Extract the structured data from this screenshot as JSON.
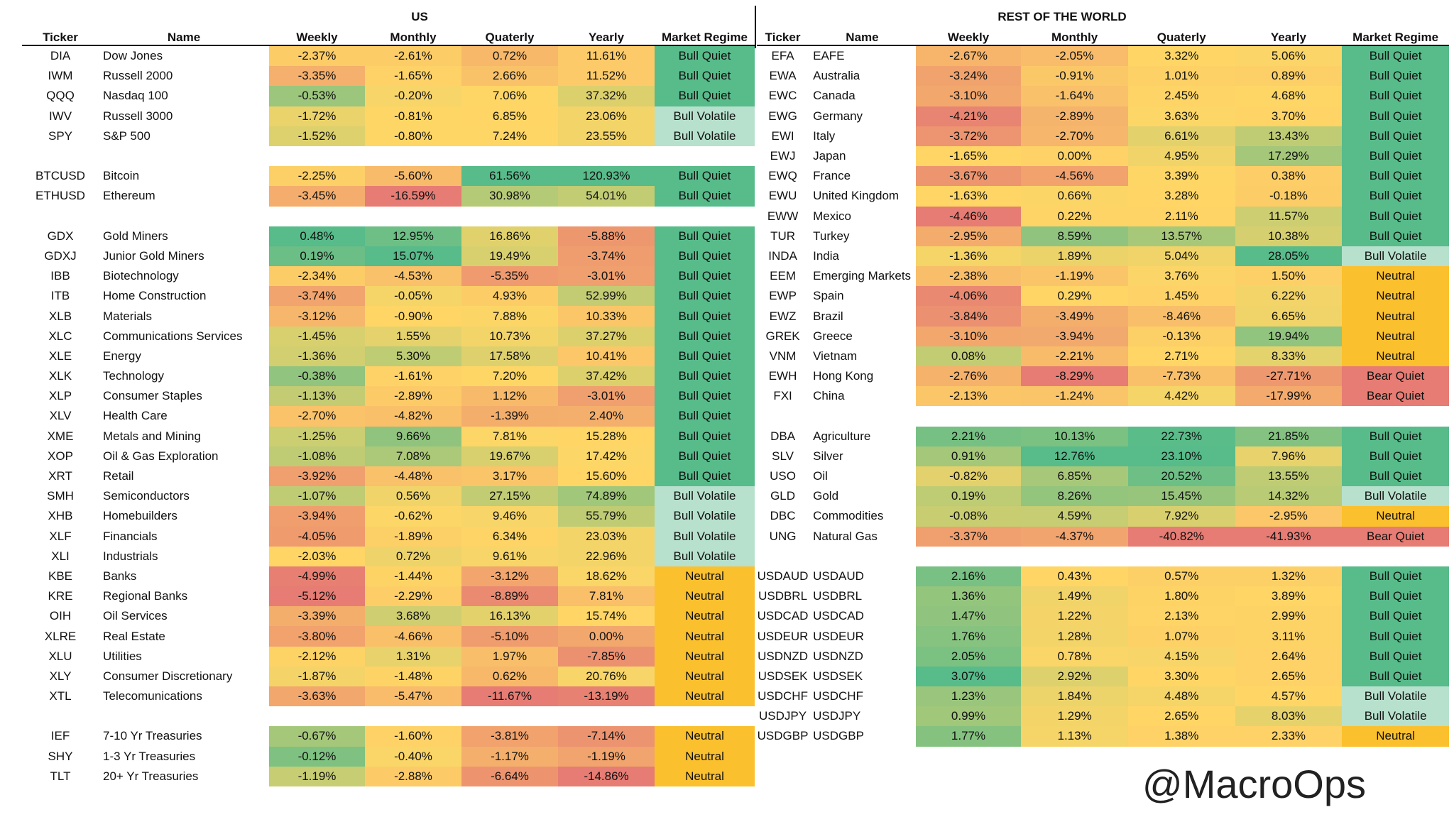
{
  "colors": {
    "bull_quiet": "#57bb8a",
    "bull_volatile": "#b7e1cd",
    "neutral": "#fbc02d",
    "bear_quiet": "#e67c73",
    "scale_low": "#e67c73",
    "scale_mid": "#ffd666",
    "scale_high": "#57bb8a"
  },
  "headers": {
    "ticker": "Ticker",
    "name": "Name",
    "weekly": "Weekly",
    "monthly": "Monthly",
    "quarterly": "Quaterly",
    "yearly": "Yearly",
    "regime": "Market Regime"
  },
  "us": {
    "title": "US",
    "rows": [
      {
        "ticker": "DIA",
        "name": "Dow Jones",
        "weekly": "-2.37%",
        "monthly": "-2.61%",
        "quarterly": "0.72%",
        "yearly": "11.61%",
        "regime": "Bull Quiet"
      },
      {
        "ticker": "IWM",
        "name": "Russell 2000",
        "weekly": "-3.35%",
        "monthly": "-1.65%",
        "quarterly": "2.66%",
        "yearly": "11.52%",
        "regime": "Bull Quiet"
      },
      {
        "ticker": "QQQ",
        "name": "Nasdaq 100",
        "weekly": "-0.53%",
        "monthly": "-0.20%",
        "quarterly": "7.06%",
        "yearly": "37.32%",
        "regime": "Bull Quiet"
      },
      {
        "ticker": "IWV",
        "name": "Russell 3000",
        "weekly": "-1.72%",
        "monthly": "-0.81%",
        "quarterly": "6.85%",
        "yearly": "23.06%",
        "regime": "Bull Volatile"
      },
      {
        "ticker": "SPY",
        "name": "S&P 500",
        "weekly": "-1.52%",
        "monthly": "-0.80%",
        "quarterly": "7.24%",
        "yearly": "23.55%",
        "regime": "Bull Volatile"
      },
      {
        "gap": true
      },
      {
        "ticker": "BTCUSD",
        "name": "Bitcoin",
        "weekly": "-2.25%",
        "monthly": "-5.60%",
        "quarterly": "61.56%",
        "yearly": "120.93%",
        "regime": "Bull Quiet"
      },
      {
        "ticker": "ETHUSD",
        "name": "Ethereum",
        "weekly": "-3.45%",
        "monthly": "-16.59%",
        "quarterly": "30.98%",
        "yearly": "54.01%",
        "regime": "Bull Quiet"
      },
      {
        "gap": true
      },
      {
        "ticker": "GDX",
        "name": "Gold Miners",
        "weekly": "0.48%",
        "monthly": "12.95%",
        "quarterly": "16.86%",
        "yearly": "-5.88%",
        "regime": "Bull Quiet"
      },
      {
        "ticker": "GDXJ",
        "name": "Junior Gold Miners",
        "weekly": "0.19%",
        "monthly": "15.07%",
        "quarterly": "19.49%",
        "yearly": "-3.74%",
        "regime": "Bull Quiet"
      },
      {
        "ticker": "IBB",
        "name": "Biotechnology",
        "weekly": "-2.34%",
        "monthly": "-4.53%",
        "quarterly": "-5.35%",
        "yearly": "-3.01%",
        "regime": "Bull Quiet"
      },
      {
        "ticker": "ITB",
        "name": "Home Construction",
        "weekly": "-3.74%",
        "monthly": "-0.05%",
        "quarterly": "4.93%",
        "yearly": "52.99%",
        "regime": "Bull Quiet"
      },
      {
        "ticker": "XLB",
        "name": "Materials",
        "weekly": "-3.12%",
        "monthly": "-0.90%",
        "quarterly": "7.88%",
        "yearly": "10.33%",
        "regime": "Bull Quiet"
      },
      {
        "ticker": "XLC",
        "name": "Communications Services",
        "weekly": "-1.45%",
        "monthly": "1.55%",
        "quarterly": "10.73%",
        "yearly": "37.27%",
        "regime": "Bull Quiet"
      },
      {
        "ticker": "XLE",
        "name": "Energy",
        "weekly": "-1.36%",
        "monthly": "5.30%",
        "quarterly": "17.58%",
        "yearly": "10.41%",
        "regime": "Bull Quiet"
      },
      {
        "ticker": "XLK",
        "name": "Technology",
        "weekly": "-0.38%",
        "monthly": "-1.61%",
        "quarterly": "7.20%",
        "yearly": "37.42%",
        "regime": "Bull Quiet"
      },
      {
        "ticker": "XLP",
        "name": "Consumer Staples",
        "weekly": "-1.13%",
        "monthly": "-2.89%",
        "quarterly": "1.12%",
        "yearly": "-3.01%",
        "regime": "Bull Quiet"
      },
      {
        "ticker": "XLV",
        "name": "Health Care",
        "weekly": "-2.70%",
        "monthly": "-4.82%",
        "quarterly": "-1.39%",
        "yearly": "2.40%",
        "regime": "Bull Quiet"
      },
      {
        "ticker": "XME",
        "name": "Metals and Mining",
        "weekly": "-1.25%",
        "monthly": "9.66%",
        "quarterly": "7.81%",
        "yearly": "15.28%",
        "regime": "Bull Quiet"
      },
      {
        "ticker": "XOP",
        "name": "Oil & Gas Exploration",
        "weekly": "-1.08%",
        "monthly": "7.08%",
        "quarterly": "19.67%",
        "yearly": "17.42%",
        "regime": "Bull Quiet"
      },
      {
        "ticker": "XRT",
        "name": "Retail",
        "weekly": "-3.92%",
        "monthly": "-4.48%",
        "quarterly": "3.17%",
        "yearly": "15.60%",
        "regime": "Bull Quiet"
      },
      {
        "ticker": "SMH",
        "name": "Semiconductors",
        "weekly": "-1.07%",
        "monthly": "0.56%",
        "quarterly": "27.15%",
        "yearly": "74.89%",
        "regime": "Bull Volatile"
      },
      {
        "ticker": "XHB",
        "name": "Homebuilders",
        "weekly": "-3.94%",
        "monthly": "-0.62%",
        "quarterly": "9.46%",
        "yearly": "55.79%",
        "regime": "Bull Volatile"
      },
      {
        "ticker": "XLF",
        "name": "Financials",
        "weekly": "-4.05%",
        "monthly": "-1.89%",
        "quarterly": "6.34%",
        "yearly": "23.03%",
        "regime": "Bull Volatile"
      },
      {
        "ticker": "XLI",
        "name": "Industrials",
        "weekly": "-2.03%",
        "monthly": "0.72%",
        "quarterly": "9.61%",
        "yearly": "22.96%",
        "regime": "Bull Volatile"
      },
      {
        "ticker": "KBE",
        "name": "Banks",
        "weekly": "-4.99%",
        "monthly": "-1.44%",
        "quarterly": "-3.12%",
        "yearly": "18.62%",
        "regime": "Neutral"
      },
      {
        "ticker": "KRE",
        "name": "Regional Banks",
        "weekly": "-5.12%",
        "monthly": "-2.29%",
        "quarterly": "-8.89%",
        "yearly": "7.81%",
        "regime": "Neutral"
      },
      {
        "ticker": "OIH",
        "name": "Oil Services",
        "weekly": "-3.39%",
        "monthly": "3.68%",
        "quarterly": "16.13%",
        "yearly": "15.74%",
        "regime": "Neutral"
      },
      {
        "ticker": "XLRE",
        "name": "Real Estate",
        "weekly": "-3.80%",
        "monthly": "-4.66%",
        "quarterly": "-5.10%",
        "yearly": "0.00%",
        "regime": "Neutral"
      },
      {
        "ticker": "XLU",
        "name": "Utilities",
        "weekly": "-2.12%",
        "monthly": "1.31%",
        "quarterly": "1.97%",
        "yearly": "-7.85%",
        "regime": "Neutral"
      },
      {
        "ticker": "XLY",
        "name": "Consumer Discretionary",
        "weekly": "-1.87%",
        "monthly": "-1.48%",
        "quarterly": "0.62%",
        "yearly": "20.76%",
        "regime": "Neutral"
      },
      {
        "ticker": "XTL",
        "name": "Telecomunications",
        "weekly": "-3.63%",
        "monthly": "-5.47%",
        "quarterly": "-11.67%",
        "yearly": "-13.19%",
        "regime": "Neutral"
      },
      {
        "gap": true
      },
      {
        "ticker": "IEF",
        "name": "7-10 Yr Treasuries",
        "weekly": "-0.67%",
        "monthly": "-1.60%",
        "quarterly": "-3.81%",
        "yearly": "-7.14%",
        "regime": "Neutral"
      },
      {
        "ticker": "SHY",
        "name": "1-3 Yr Treasuries",
        "weekly": "-0.12%",
        "monthly": "-0.40%",
        "quarterly": "-1.17%",
        "yearly": "-1.19%",
        "regime": "Neutral"
      },
      {
        "ticker": "TLT",
        "name": "20+ Yr Treasuries",
        "weekly": "-1.19%",
        "monthly": "-2.88%",
        "quarterly": "-6.64%",
        "yearly": "-14.86%",
        "regime": "Neutral"
      }
    ]
  },
  "rest_of_world": {
    "title": "REST OF THE WORLD",
    "rows": [
      {
        "ticker": "EFA",
        "name": "EAFE",
        "weekly": "-2.67%",
        "monthly": "-2.05%",
        "quarterly": "3.32%",
        "yearly": "5.06%",
        "regime": "Bull Quiet"
      },
      {
        "ticker": "EWA",
        "name": "Australia",
        "weekly": "-3.24%",
        "monthly": "-0.91%",
        "quarterly": "1.01%",
        "yearly": "0.89%",
        "regime": "Bull Quiet"
      },
      {
        "ticker": "EWC",
        "name": "Canada",
        "weekly": "-3.10%",
        "monthly": "-1.64%",
        "quarterly": "2.45%",
        "yearly": "4.68%",
        "regime": "Bull Quiet"
      },
      {
        "ticker": "EWG",
        "name": "Germany",
        "weekly": "-4.21%",
        "monthly": "-2.89%",
        "quarterly": "3.63%",
        "yearly": "3.70%",
        "regime": "Bull Quiet"
      },
      {
        "ticker": "EWI",
        "name": "Italy",
        "weekly": "-3.72%",
        "monthly": "-2.70%",
        "quarterly": "6.61%",
        "yearly": "13.43%",
        "regime": "Bull Quiet"
      },
      {
        "ticker": "EWJ",
        "name": "Japan",
        "weekly": "-1.65%",
        "monthly": "0.00%",
        "quarterly": "4.95%",
        "yearly": "17.29%",
        "regime": "Bull Quiet"
      },
      {
        "ticker": "EWQ",
        "name": "France",
        "weekly": "-3.67%",
        "monthly": "-4.56%",
        "quarterly": "3.39%",
        "yearly": "0.38%",
        "regime": "Bull Quiet"
      },
      {
        "ticker": "EWU",
        "name": "United Kingdom",
        "weekly": "-1.63%",
        "monthly": "0.66%",
        "quarterly": "3.28%",
        "yearly": "-0.18%",
        "regime": "Bull Quiet"
      },
      {
        "ticker": "EWW",
        "name": "Mexico",
        "weekly": "-4.46%",
        "monthly": "0.22%",
        "quarterly": "2.11%",
        "yearly": "11.57%",
        "regime": "Bull Quiet"
      },
      {
        "ticker": "TUR",
        "name": "Turkey",
        "weekly": "-2.95%",
        "monthly": "8.59%",
        "quarterly": "13.57%",
        "yearly": "10.38%",
        "regime": "Bull Quiet"
      },
      {
        "ticker": "INDA",
        "name": "India",
        "weekly": "-1.36%",
        "monthly": "1.89%",
        "quarterly": "5.04%",
        "yearly": "28.05%",
        "regime": "Bull Volatile"
      },
      {
        "ticker": "EEM",
        "name": "Emerging Markets",
        "weekly": "-2.38%",
        "monthly": "-1.19%",
        "quarterly": "3.76%",
        "yearly": "1.50%",
        "regime": "Neutral"
      },
      {
        "ticker": "EWP",
        "name": "Spain",
        "weekly": "-4.06%",
        "monthly": "0.29%",
        "quarterly": "1.45%",
        "yearly": "6.22%",
        "regime": "Neutral"
      },
      {
        "ticker": "EWZ",
        "name": "Brazil",
        "weekly": "-3.84%",
        "monthly": "-3.49%",
        "quarterly": "-8.46%",
        "yearly": "6.65%",
        "regime": "Neutral"
      },
      {
        "ticker": "GREK",
        "name": "Greece",
        "weekly": "-3.10%",
        "monthly": "-3.94%",
        "quarterly": "-0.13%",
        "yearly": "19.94%",
        "regime": "Neutral"
      },
      {
        "ticker": "VNM",
        "name": "Vietnam",
        "weekly": "0.08%",
        "monthly": "-2.21%",
        "quarterly": "2.71%",
        "yearly": "8.33%",
        "regime": "Neutral"
      },
      {
        "ticker": "EWH",
        "name": "Hong Kong",
        "weekly": "-2.76%",
        "monthly": "-8.29%",
        "quarterly": "-7.73%",
        "yearly": "-27.71%",
        "regime": "Bear Quiet"
      },
      {
        "ticker": "FXI",
        "name": "China",
        "weekly": "-2.13%",
        "monthly": "-1.24%",
        "quarterly": "4.42%",
        "yearly": "-17.99%",
        "regime": "Bear Quiet"
      },
      {
        "gap": true
      },
      {
        "ticker": "DBA",
        "name": "Agriculture",
        "weekly": "2.21%",
        "monthly": "10.13%",
        "quarterly": "22.73%",
        "yearly": "21.85%",
        "regime": "Bull Quiet"
      },
      {
        "ticker": "SLV",
        "name": "Silver",
        "weekly": "0.91%",
        "monthly": "12.76%",
        "quarterly": "23.10%",
        "yearly": "7.96%",
        "regime": "Bull Quiet"
      },
      {
        "ticker": "USO",
        "name": "Oil",
        "weekly": "-0.82%",
        "monthly": "6.85%",
        "quarterly": "20.52%",
        "yearly": "13.55%",
        "regime": "Bull Quiet"
      },
      {
        "ticker": "GLD",
        "name": "Gold",
        "weekly": "0.19%",
        "monthly": "8.26%",
        "quarterly": "15.45%",
        "yearly": "14.32%",
        "regime": "Bull Volatile"
      },
      {
        "ticker": "DBC",
        "name": "Commodities",
        "weekly": "-0.08%",
        "monthly": "4.59%",
        "quarterly": "7.92%",
        "yearly": "-2.95%",
        "regime": "Neutral"
      },
      {
        "ticker": "UNG",
        "name": "Natural Gas",
        "weekly": "-3.37%",
        "monthly": "-4.37%",
        "quarterly": "-40.82%",
        "yearly": "-41.93%",
        "regime": "Bear Quiet"
      },
      {
        "gap": true
      },
      {
        "ticker": "USDAUD",
        "name": "USDAUD",
        "weekly": "2.16%",
        "monthly": "0.43%",
        "quarterly": "0.57%",
        "yearly": "1.32%",
        "regime": "Bull Quiet"
      },
      {
        "ticker": "USDBRL",
        "name": "USDBRL",
        "weekly": "1.36%",
        "monthly": "1.49%",
        "quarterly": "1.80%",
        "yearly": "3.89%",
        "regime": "Bull Quiet"
      },
      {
        "ticker": "USDCAD",
        "name": "USDCAD",
        "weekly": "1.47%",
        "monthly": "1.22%",
        "quarterly": "2.13%",
        "yearly": "2.99%",
        "regime": "Bull Quiet"
      },
      {
        "ticker": "USDEUR",
        "name": "USDEUR",
        "weekly": "1.76%",
        "monthly": "1.28%",
        "quarterly": "1.07%",
        "yearly": "3.11%",
        "regime": "Bull Quiet"
      },
      {
        "ticker": "USDNZD",
        "name": "USDNZD",
        "weekly": "2.05%",
        "monthly": "0.78%",
        "quarterly": "4.15%",
        "yearly": "2.64%",
        "regime": "Bull Quiet"
      },
      {
        "ticker": "USDSEK",
        "name": "USDSEK",
        "weekly": "3.07%",
        "monthly": "2.92%",
        "quarterly": "3.30%",
        "yearly": "2.65%",
        "regime": "Bull Quiet"
      },
      {
        "ticker": "USDCHF",
        "name": "USDCHF",
        "weekly": "1.23%",
        "monthly": "1.84%",
        "quarterly": "4.48%",
        "yearly": "4.57%",
        "regime": "Bull Volatile"
      },
      {
        "ticker": "USDJPY",
        "name": "USDJPY",
        "weekly": "0.99%",
        "monthly": "1.29%",
        "quarterly": "2.65%",
        "yearly": "8.03%",
        "regime": "Bull Volatile"
      },
      {
        "ticker": "USDGBP",
        "name": "USDGBP",
        "weekly": "1.77%",
        "monthly": "1.13%",
        "quarterly": "1.38%",
        "yearly": "2.33%",
        "regime": "Neutral"
      }
    ]
  },
  "watermark": "@MacroOps"
}
